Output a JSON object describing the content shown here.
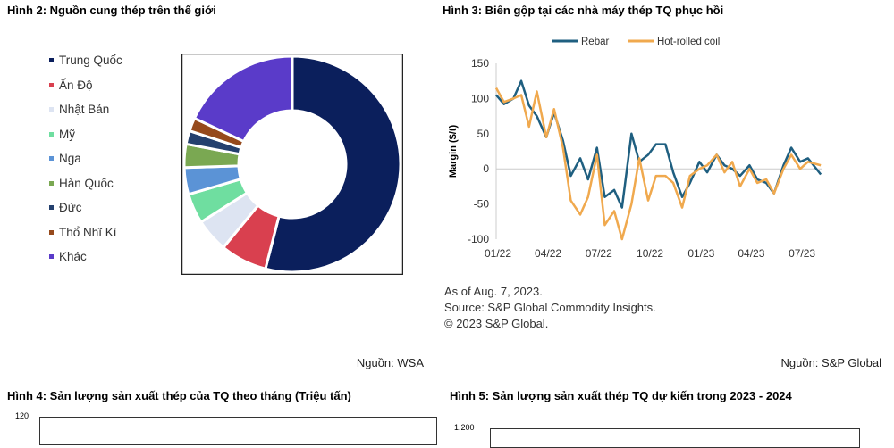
{
  "figure2": {
    "title": "Hình 2: Nguồn cung thép trên thế giới",
    "source": "Nguồn: WSA",
    "chart_data": {
      "type": "pie",
      "donut": true,
      "categories": [
        "Trung Quốc",
        "Ấn Độ",
        "Nhật Bản",
        "Mỹ",
        "Nga",
        "Hàn Quốc",
        "Đức",
        "Thổ Nhĩ Kì",
        "Khác"
      ],
      "values": [
        54,
        7,
        5,
        4.5,
        4,
        3.5,
        2,
        2,
        18
      ],
      "colors": [
        "#0b1f5c",
        "#d9404f",
        "#dde4f2",
        "#6fdea0",
        "#5b93d6",
        "#7aa852",
        "#24406e",
        "#964a1c",
        "#5a3bc9"
      ],
      "legend_placement": "left"
    }
  },
  "figure3": {
    "title": "Hình 3: Biên gộp tại các nhà máy thép TQ phục hồi",
    "source": "Nguồn: S&P Global",
    "notes": [
      "As of Aug. 7, 2023.",
      "Source: S&P Global Commodity Insights.",
      "© 2023 S&P Global."
    ],
    "chart_data": {
      "type": "line",
      "ylabel": "Margin ($/t)",
      "xlabel": "",
      "ylim": [
        -100,
        150
      ],
      "yticks": [
        "150",
        "100",
        "50",
        "0",
        "-50",
        "-100"
      ],
      "xticks": [
        "01/22",
        "04/22",
        "07/22",
        "10/22",
        "01/23",
        "04/23",
        "07/23"
      ],
      "legend_placement": "top",
      "x": [
        "2022-01-01",
        "2022-01-15",
        "2022-02-01",
        "2022-02-15",
        "2022-03-01",
        "2022-03-15",
        "2022-04-01",
        "2022-04-15",
        "2022-05-01",
        "2022-05-15",
        "2022-06-01",
        "2022-06-15",
        "2022-07-01",
        "2022-07-15",
        "2022-08-01",
        "2022-08-15",
        "2022-09-01",
        "2022-09-15",
        "2022-10-01",
        "2022-10-15",
        "2022-11-01",
        "2022-11-15",
        "2022-12-01",
        "2022-12-15",
        "2023-01-01",
        "2023-01-15",
        "2023-02-01",
        "2023-02-15",
        "2023-03-01",
        "2023-03-15",
        "2023-04-01",
        "2023-04-15",
        "2023-05-01",
        "2023-05-15",
        "2023-06-01",
        "2023-06-15",
        "2023-07-01",
        "2023-07-15",
        "2023-08-07"
      ],
      "series": [
        {
          "name": "Rebar",
          "color": "#1f5f80",
          "values": [
            105,
            92,
            100,
            125,
            90,
            75,
            45,
            80,
            40,
            -10,
            15,
            -15,
            30,
            -40,
            -30,
            -55,
            50,
            10,
            20,
            35,
            35,
            -5,
            -40,
            -20,
            10,
            -5,
            20,
            5,
            0,
            -10,
            5,
            -15,
            -20,
            -35,
            5,
            30,
            10,
            15,
            -8
          ]
        },
        {
          "name": "Hot-rolled coil",
          "color": "#f0a94e",
          "values": [
            115,
            95,
            100,
            105,
            60,
            110,
            45,
            85,
            30,
            -45,
            -65,
            -40,
            20,
            -80,
            -60,
            -100,
            -50,
            15,
            -45,
            -10,
            -10,
            -20,
            -55,
            -10,
            0,
            5,
            20,
            -5,
            10,
            -25,
            0,
            -20,
            -15,
            -35,
            0,
            20,
            0,
            10,
            5
          ]
        }
      ]
    }
  },
  "figure4": {
    "title": "Hình 4: Sản lượng sản xuất thép của TQ theo tháng (Triệu tấn)",
    "ytick_top": "120"
  },
  "figure5": {
    "title": "Hình 5: Sản lượng sản xuất thép TQ dự kiến trong 2023 - 2024",
    "ytick_top": "1.200"
  }
}
